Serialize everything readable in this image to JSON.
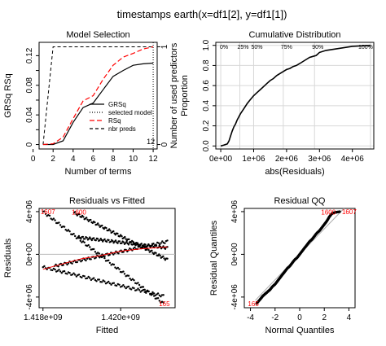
{
  "figure": {
    "title": "timestamps      earth(x=df1[2], y=df1[1])"
  },
  "colors": {
    "black": "#000000",
    "red": "#ff0000",
    "grid": "#d8d8d8"
  },
  "chart_data": [
    {
      "id": "model-selection",
      "type": "line",
      "title": "Model Selection",
      "xlabel": "Number of terms",
      "ylabel": "GRSq   RSq",
      "ylabel_right": "Number of used predictors",
      "xlim": [
        0.6,
        12.4
      ],
      "ylim": [
        -0.006,
        0.138
      ],
      "x_ticks": [
        0,
        2,
        4,
        6,
        8,
        10,
        12
      ],
      "y_ticks": [
        0,
        0.02,
        0.04,
        0.06,
        0.08,
        0.1,
        0.12
      ],
      "y_tick_labels": [
        "0",
        "",
        "0.04",
        "",
        "0.08",
        "",
        "0.12"
      ],
      "right_axis_ticks": [
        0,
        1
      ],
      "right_axis_labels": [
        "0",
        "1"
      ],
      "vline_x": 12,
      "vline_label": "12",
      "legend": [
        "GRSq",
        "selected model",
        "RSq",
        "nbr preds"
      ],
      "legend_position": "bottom-right",
      "series": [
        {
          "name": "GRSq",
          "style": "solid",
          "color": "#000000",
          "x": [
            1,
            2,
            3,
            4,
            5,
            6,
            7,
            8,
            9,
            10,
            11,
            12
          ],
          "y": [
            0.0,
            0.0,
            0.005,
            0.03,
            0.05,
            0.056,
            0.074,
            0.092,
            0.1,
            0.107,
            0.109,
            0.11
          ]
        },
        {
          "name": "RSq",
          "style": "dashed",
          "color": "#ff0000",
          "x": [
            1,
            2,
            3,
            4,
            5,
            6,
            7,
            8,
            9,
            10,
            11,
            12
          ],
          "y": [
            0.0,
            0.001,
            0.01,
            0.035,
            0.059,
            0.066,
            0.088,
            0.107,
            0.118,
            0.123,
            0.129,
            0.132
          ]
        },
        {
          "name": "nbr preds",
          "style": "dashed",
          "color": "#000000",
          "x": [
            1,
            2,
            3,
            4,
            5,
            6,
            7,
            8,
            9,
            10,
            11,
            12
          ],
          "y_preds": [
            0,
            1,
            1,
            1,
            1,
            1,
            1,
            1,
            1,
            1,
            1,
            1
          ]
        }
      ]
    },
    {
      "id": "cumulative-distribution",
      "type": "line",
      "title": "Cumulative Distribution",
      "xlabel": "abs(Residuals)",
      "ylabel": "Proportion",
      "xlim": [
        -150000,
        4650000
      ],
      "ylim": [
        -0.03,
        1.03
      ],
      "x_ticks": [
        0,
        1000000,
        2000000,
        3000000,
        4000000
      ],
      "x_tick_labels": [
        "0e+00",
        "1e+06",
        "2e+06",
        "3e+06",
        "4e+06"
      ],
      "y_ticks": [
        0,
        0.2,
        0.4,
        0.6,
        0.8,
        1.0
      ],
      "y_tick_labels": [
        "0.0",
        "0.2",
        "0.4",
        "0.6",
        "0.8",
        "1.0"
      ],
      "percentile_labels": [
        "0%",
        "25%",
        "50%",
        "75%",
        "90%",
        "100%"
      ],
      "percentile_positions": [
        0,
        580000,
        1000000,
        1900000,
        2850000,
        4550000
      ],
      "grid": true,
      "series": [
        {
          "name": "",
          "x": [
            0,
            100000,
            200000,
            250000,
            300000,
            350000,
            400000,
            450000,
            500000,
            600000,
            700000,
            800000,
            900000,
            1000000,
            1100000,
            1200000,
            1300000,
            1400000,
            1500000,
            1600000,
            1700000,
            1800000,
            1900000,
            2000000,
            2100000,
            2200000,
            2300000,
            2400000,
            2500000,
            2600000,
            2700000,
            2800000,
            2900000,
            3000000,
            3200000,
            3600000,
            4000000,
            4550000
          ],
          "y": [
            0,
            0.01,
            0.02,
            0.05,
            0.1,
            0.15,
            0.19,
            0.22,
            0.26,
            0.32,
            0.37,
            0.42,
            0.46,
            0.5,
            0.53,
            0.56,
            0.59,
            0.62,
            0.65,
            0.67,
            0.7,
            0.72,
            0.74,
            0.76,
            0.77,
            0.79,
            0.8,
            0.82,
            0.84,
            0.86,
            0.88,
            0.89,
            0.9,
            0.93,
            0.95,
            0.97,
            0.99,
            1.0
          ]
        }
      ]
    },
    {
      "id": "residuals-vs-fitted",
      "type": "scatter",
      "title": "Residuals vs Fitted",
      "xlabel": "Fitted",
      "ylabel": "Residuals",
      "xlim": [
        1417900000,
        1421400000
      ],
      "ylim": [
        -5000000,
        4300000
      ],
      "x_ticks": [
        1418000000,
        1420000000
      ],
      "x_tick_labels": [
        "1.418e+09",
        "1.420e+09"
      ],
      "y_ticks": [
        -4000000,
        0,
        4000000
      ],
      "y_tick_labels": [
        "-4e+06",
        "0e+00",
        "4e+06"
      ],
      "annotations": [
        {
          "label": "1607",
          "x": 1418000000,
          "y": 4000000
        },
        {
          "label": "1600",
          "x": 1418800000,
          "y": 3950000
        },
        {
          "label": "165",
          "x": 1421000000,
          "y": -4600000
        }
      ],
      "bands": [
        {
          "x": [
            1418000000,
            1421100000
          ],
          "y": [
            4000000,
            -4600000
          ]
        },
        {
          "x": [
            1418800000,
            1421200000
          ],
          "y": [
            3900000,
            -500000
          ]
        },
        {
          "x": [
            1418300000,
            1421200000
          ],
          "y": [
            -1100000,
            1200000
          ]
        },
        {
          "x": [
            1418000000,
            1421100000
          ],
          "y": [
            -1200000,
            -3900000
          ]
        },
        {
          "x": [
            1418900000,
            1421200000
          ],
          "y": [
            1600000,
            600000
          ]
        }
      ],
      "smooth": {
        "x": [
          1418000000,
          1418500000,
          1419000000,
          1419500000,
          1420000000,
          1420500000,
          1421200000
        ],
        "y": [
          -1400000,
          -900000,
          -400000,
          -100000,
          300000,
          500000,
          700000
        ]
      }
    },
    {
      "id": "residual-qq",
      "type": "scatter",
      "title": "Residual QQ",
      "xlabel": "Normal Quantiles",
      "ylabel": "Residual Quantiles",
      "xlim": [
        -4.5,
        4.5
      ],
      "ylim": [
        -5000000,
        4300000
      ],
      "x_ticks": [
        -4,
        -2,
        0,
        2,
        4
      ],
      "x_tick_labels": [
        "-4",
        "-2",
        "0",
        "2",
        "4"
      ],
      "y_ticks": [
        -4000000,
        0,
        4000000
      ],
      "y_tick_labels": [
        "-4e+06",
        "0e+00",
        "4e+06"
      ],
      "annotations": [
        {
          "label": "1600",
          "x": 2.6,
          "y": 3950000
        },
        {
          "label": "1607",
          "x": 3.5,
          "y": 4000000
        },
        {
          "label": "165",
          "x": -3.5,
          "y": -4600000
        }
      ],
      "reference_line": {
        "x": [
          -3.6,
          3.6
        ],
        "y": [
          -4300000,
          4300000
        ]
      },
      "series": [
        {
          "name": "",
          "x": [
            -3.5,
            -3.2,
            -3.0,
            -2.8,
            -2.6,
            -2.4,
            -2.2,
            -2.0,
            -1.8,
            -1.6,
            -1.4,
            -1.2,
            -1.0,
            -0.8,
            -0.6,
            -0.4,
            -0.2,
            0.0,
            0.2,
            0.4,
            0.6,
            0.8,
            1.0,
            1.2,
            1.4,
            1.6,
            1.8,
            2.0,
            2.2,
            2.4,
            2.6,
            2.8,
            3.0,
            3.3
          ],
          "y": [
            -4600000,
            -4200000,
            -3900000,
            -3700000,
            -3500000,
            -3300000,
            -3000000,
            -2800000,
            -2500000,
            -2200000,
            -1900000,
            -1600000,
            -1300000,
            -1100000,
            -800000,
            -500000,
            -300000,
            0,
            300000,
            600000,
            900000,
            1200000,
            1400000,
            1700000,
            2000000,
            2200000,
            2500000,
            2800000,
            3100000,
            3500000,
            3800000,
            3900000,
            3950000,
            4000000
          ]
        }
      ]
    }
  ]
}
